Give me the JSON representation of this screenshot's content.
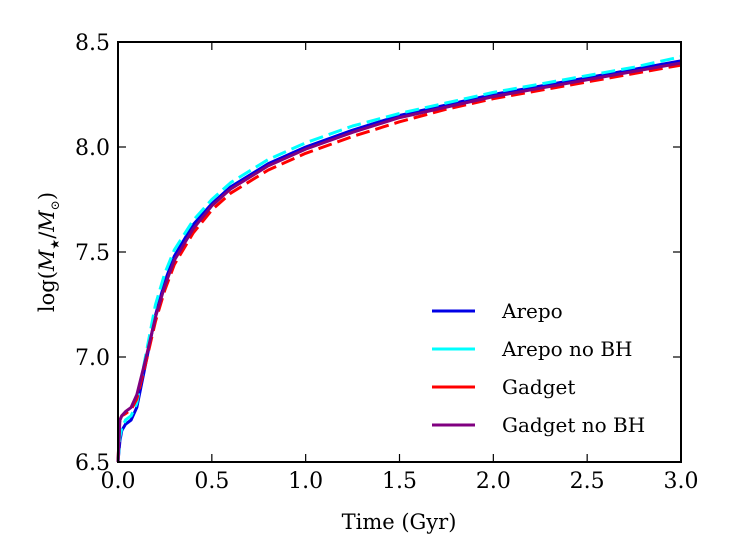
{
  "chart_data": {
    "type": "line",
    "title": "",
    "xlabel": "Time (Gyr)",
    "ylabel_parts": [
      "log(",
      "M",
      "★",
      "/",
      "M",
      "⊙",
      ")"
    ],
    "xlim": [
      0.0,
      3.0
    ],
    "ylim": [
      6.5,
      8.5
    ],
    "xticks": [
      "0.0",
      "0.5",
      "1.0",
      "1.5",
      "2.0",
      "2.5",
      "3.0"
    ],
    "yticks": [
      "6.5",
      "7.0",
      "7.5",
      "8.0",
      "8.5"
    ],
    "grid": false,
    "legend_position": "lower-right",
    "series": [
      {
        "name": "Arepo",
        "color": "#0000e6",
        "style": "solid",
        "x": [
          0.0,
          0.01,
          0.02,
          0.04,
          0.07,
          0.1,
          0.15,
          0.2,
          0.25,
          0.3,
          0.4,
          0.5,
          0.6,
          0.8,
          1.0,
          1.25,
          1.5,
          1.75,
          2.0,
          2.25,
          2.5,
          2.75,
          3.0
        ],
        "y": [
          6.5,
          6.6,
          6.65,
          6.68,
          6.7,
          6.76,
          6.98,
          7.2,
          7.36,
          7.48,
          7.63,
          7.73,
          7.81,
          7.92,
          8.0,
          8.08,
          8.15,
          8.2,
          8.25,
          8.29,
          8.33,
          8.37,
          8.41
        ]
      },
      {
        "name": "Arepo no BH",
        "color": "#00ffff",
        "style": "dashed",
        "x": [
          0.0,
          0.01,
          0.02,
          0.04,
          0.07,
          0.1,
          0.15,
          0.2,
          0.25,
          0.3,
          0.4,
          0.5,
          0.6,
          0.8,
          1.0,
          1.25,
          1.5,
          1.75,
          2.0,
          2.25,
          2.5,
          2.75,
          3.0
        ],
        "y": [
          6.5,
          6.62,
          6.66,
          6.7,
          6.72,
          6.78,
          7.02,
          7.25,
          7.4,
          7.51,
          7.65,
          7.75,
          7.83,
          7.94,
          8.02,
          8.1,
          8.16,
          8.21,
          8.26,
          8.3,
          8.34,
          8.38,
          8.43
        ]
      },
      {
        "name": "Gadget",
        "color": "#ff0000",
        "style": "dashed",
        "x": [
          0.0,
          0.01,
          0.02,
          0.04,
          0.07,
          0.1,
          0.15,
          0.2,
          0.25,
          0.3,
          0.4,
          0.5,
          0.6,
          0.8,
          1.0,
          1.25,
          1.5,
          1.75,
          2.0,
          2.25,
          2.5,
          2.75,
          3.0
        ],
        "y": [
          6.5,
          6.7,
          6.72,
          6.73,
          6.75,
          6.8,
          6.98,
          7.17,
          7.32,
          7.44,
          7.59,
          7.7,
          7.78,
          7.89,
          7.97,
          8.05,
          8.12,
          8.18,
          8.23,
          8.27,
          8.31,
          8.35,
          8.39
        ]
      },
      {
        "name": "Gadget no BH",
        "color": "#800080",
        "style": "solid",
        "x": [
          0.0,
          0.01,
          0.02,
          0.04,
          0.07,
          0.1,
          0.15,
          0.2,
          0.25,
          0.3,
          0.4,
          0.5,
          0.6,
          0.8,
          1.0,
          1.25,
          1.5,
          1.75,
          2.0,
          2.25,
          2.5,
          2.75,
          3.0
        ],
        "y": [
          6.5,
          6.7,
          6.72,
          6.74,
          6.76,
          6.82,
          7.0,
          7.19,
          7.34,
          7.46,
          7.61,
          7.72,
          7.8,
          7.91,
          7.99,
          8.07,
          8.14,
          8.19,
          8.24,
          8.28,
          8.32,
          8.36,
          8.4
        ]
      }
    ]
  }
}
